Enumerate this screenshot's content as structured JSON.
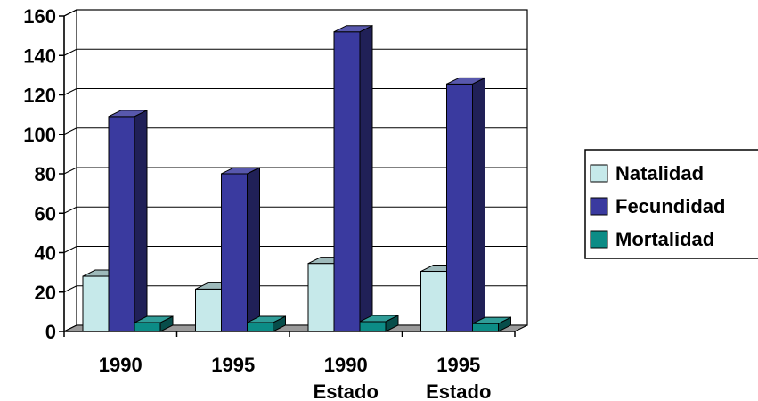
{
  "chart_data": {
    "type": "bar",
    "categories": [
      [
        "1990"
      ],
      [
        "1995"
      ],
      [
        "1990",
        "Estado"
      ],
      [
        "1995",
        "Estado"
      ]
    ],
    "series": [
      {
        "name": "Natalidad",
        "values": [
          28,
          21.5,
          34.5,
          30.5
        ],
        "color": "#C6E9EA"
      },
      {
        "name": "Fecundidad",
        "values": [
          109,
          80,
          152,
          125.5
        ],
        "color": "#3A3A9F"
      },
      {
        "name": "Mortalidad",
        "values": [
          4.5,
          4.5,
          5,
          4
        ],
        "color": "#0C8C86"
      }
    ],
    "ylim": [
      0,
      160
    ],
    "yticks": [
      0,
      20,
      40,
      60,
      80,
      100,
      120,
      140,
      160
    ],
    "grid": true,
    "legend": "right",
    "title": "",
    "xlabel": "",
    "ylabel": ""
  }
}
